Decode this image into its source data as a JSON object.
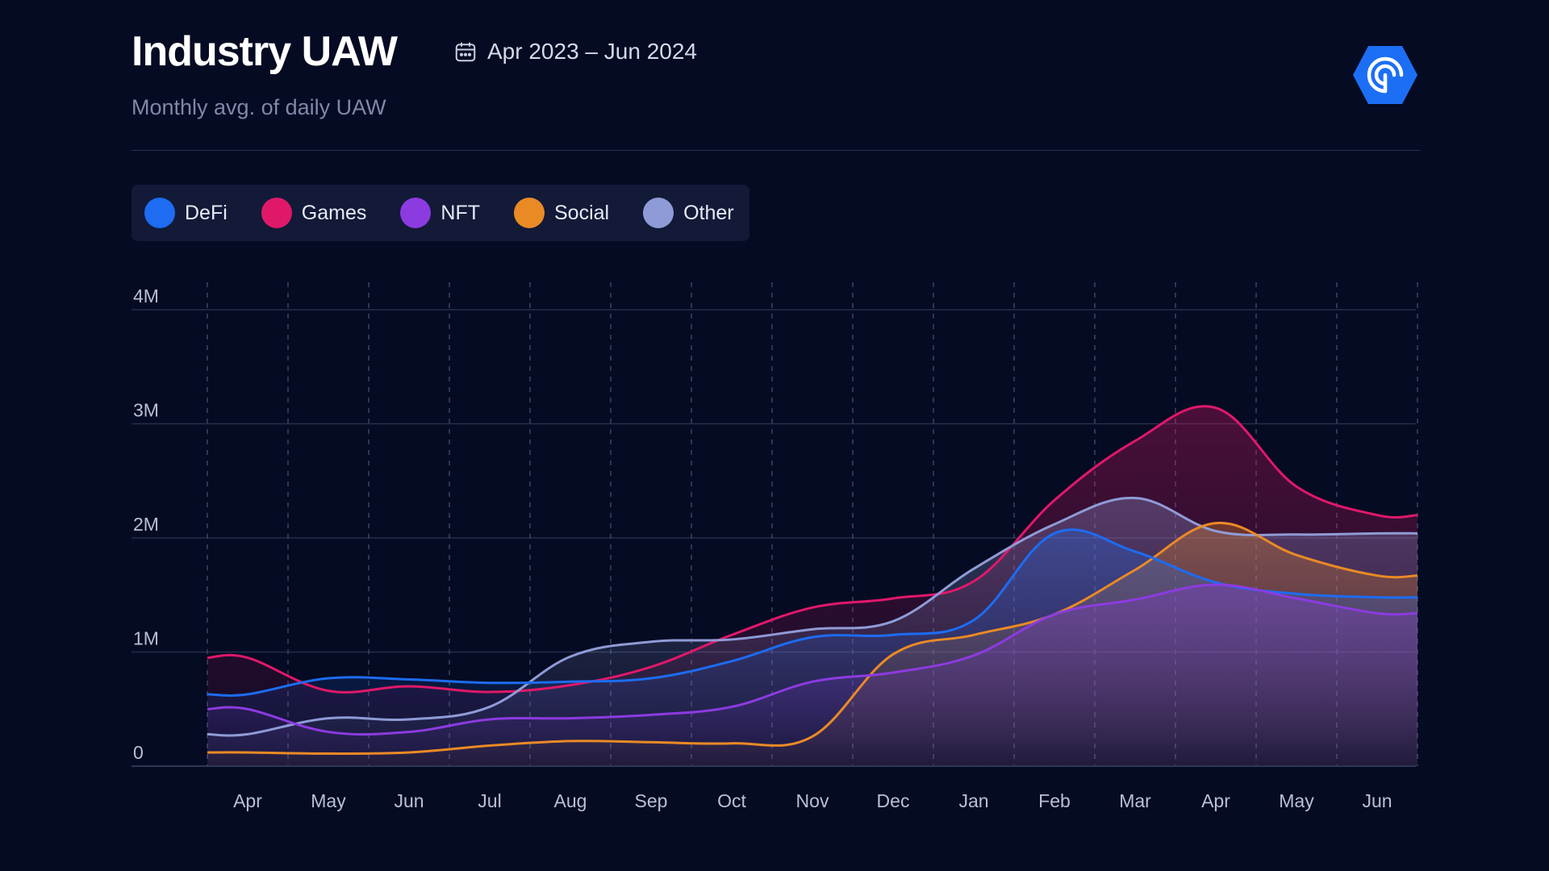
{
  "header": {
    "title": "Industry UAW",
    "date_range": "Apr 2023 – Jun 2024",
    "subtitle": "Monthly avg. of daily UAW"
  },
  "colors": {
    "background": "#050b22",
    "DefFi": "#1d6cf2",
    "Games": "#e0186a",
    "NFT": "#8c3be0",
    "Social": "#ea8a25",
    "Other": "#8f9bd6",
    "logo": "#1c6ff5"
  },
  "legend": [
    {
      "label": "DeFi",
      "color": "#1d6cf2"
    },
    {
      "label": "Games",
      "color": "#e0186a"
    },
    {
      "label": "NFT",
      "color": "#8c3be0"
    },
    {
      "label": "Social",
      "color": "#ea8a25"
    },
    {
      "label": "Other",
      "color": "#8f9bd6"
    }
  ],
  "chart_data": {
    "type": "area",
    "ylim": [
      0,
      4000000
    ],
    "y_ticks": [
      {
        "value": 0,
        "label": "0"
      },
      {
        "value": 1000000,
        "label": "1M"
      },
      {
        "value": 2000000,
        "label": "2M"
      },
      {
        "value": 3000000,
        "label": "3M"
      },
      {
        "value": 4000000,
        "label": "4M"
      }
    ],
    "x_labels": [
      "Apr",
      "May",
      "Jun",
      "Jul",
      "Aug",
      "Sep",
      "Oct",
      "Nov",
      "Dec",
      "Jan",
      "Feb",
      "Mar",
      "Apr",
      "May",
      "Jun"
    ],
    "grid": "vertical dashed, horizontal solid",
    "series": [
      {
        "name": "Games",
        "color": "#e0186a",
        "values": [
          950000,
          660000,
          700000,
          650000,
          710000,
          870000,
          1150000,
          1390000,
          1470000,
          1620000,
          2330000,
          2850000,
          3140000,
          2450000,
          2200000
        ]
      },
      {
        "name": "Other",
        "color": "#8f9bd6",
        "values": [
          280000,
          420000,
          410000,
          520000,
          960000,
          1090000,
          1110000,
          1200000,
          1270000,
          1730000,
          2120000,
          2350000,
          2060000,
          2030000,
          2040000
        ]
      },
      {
        "name": "Social",
        "color": "#ea8a25",
        "values": [
          120000,
          110000,
          120000,
          180000,
          220000,
          210000,
          200000,
          260000,
          980000,
          1150000,
          1330000,
          1720000,
          2130000,
          1850000,
          1670000
        ]
      },
      {
        "name": "DeFi",
        "color": "#1d6cf2",
        "values": [
          630000,
          770000,
          760000,
          730000,
          740000,
          770000,
          920000,
          1130000,
          1150000,
          1280000,
          2040000,
          1880000,
          1610000,
          1510000,
          1480000
        ]
      },
      {
        "name": "NFT",
        "color": "#8c3be0",
        "values": [
          500000,
          300000,
          300000,
          410000,
          420000,
          450000,
          520000,
          740000,
          820000,
          970000,
          1330000,
          1460000,
          1590000,
          1470000,
          1340000
        ]
      }
    ]
  }
}
